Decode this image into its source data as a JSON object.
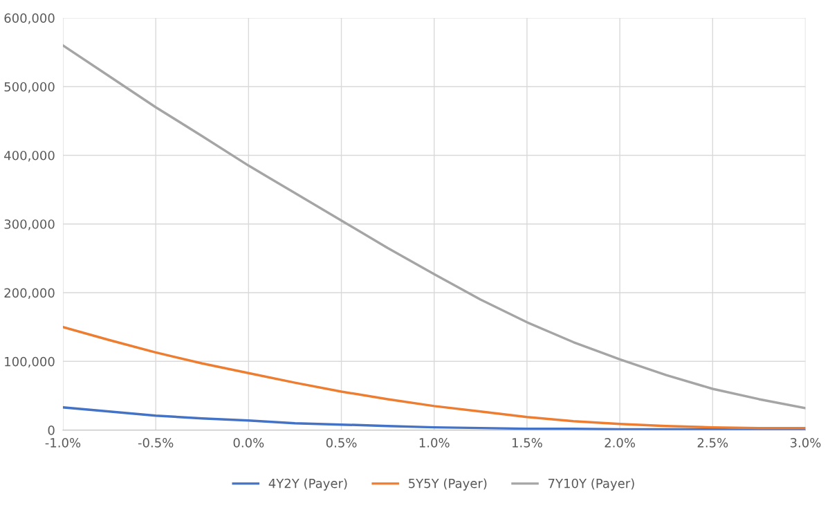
{
  "chart_data": {
    "type": "line",
    "x": [
      -1.0,
      -0.75,
      -0.5,
      -0.25,
      0.0,
      0.25,
      0.5,
      0.75,
      1.0,
      1.25,
      1.5,
      1.75,
      2.0,
      2.25,
      2.5,
      2.75,
      3.0
    ],
    "series": [
      {
        "name": "4Y2Y (Payer)",
        "color": "#4472c4",
        "values": [
          33000,
          27000,
          21000,
          17000,
          14000,
          10000,
          8000,
          6000,
          4000,
          3000,
          2000,
          2000,
          1000,
          1000,
          1000,
          0,
          0
        ]
      },
      {
        "name": "5Y5Y (Payer)",
        "color": "#ed7d31",
        "values": [
          150000,
          131000,
          113000,
          97000,
          83000,
          69000,
          56000,
          45000,
          35000,
          27000,
          19000,
          13000,
          9000,
          6000,
          4000,
          3000,
          3000
        ]
      },
      {
        "name": "7Y10Y (Payer)",
        "color": "#a5a5a5",
        "values": [
          560000,
          515000,
          470000,
          428000,
          385000,
          345000,
          305000,
          265000,
          227000,
          190000,
          157000,
          128000,
          103000,
          80000,
          60000,
          45000,
          32000
        ]
      }
    ],
    "xlim": [
      -1.0,
      3.0
    ],
    "xticks": [
      {
        "value": -1.0,
        "label": "-1.0%"
      },
      {
        "value": -0.5,
        "label": "-0.5%"
      },
      {
        "value": 0.0,
        "label": "0.0%"
      },
      {
        "value": 0.5,
        "label": "0.5%"
      },
      {
        "value": 1.0,
        "label": "1.0%"
      },
      {
        "value": 1.5,
        "label": "1.5%"
      },
      {
        "value": 2.0,
        "label": "2.0%"
      },
      {
        "value": 2.5,
        "label": "2.5%"
      },
      {
        "value": 3.0,
        "label": "3.0%"
      }
    ],
    "ylim": [
      0,
      600000
    ],
    "yticks": [
      0,
      {
        "value": 100000,
        "label": "100,000"
      },
      {
        "value": 200000,
        "label": "200,000"
      },
      {
        "value": 300000,
        "label": "300,000"
      },
      {
        "value": 400000,
        "label": "400,000"
      },
      {
        "value": 500000,
        "label": "500,000"
      },
      {
        "value": 600000,
        "label": "600,000"
      }
    ],
    "grid": true,
    "legend": "bottom",
    "marker": "none",
    "line_style": "solid"
  }
}
